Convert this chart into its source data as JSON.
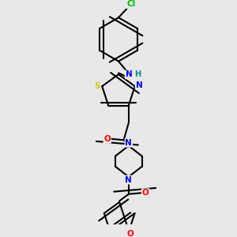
{
  "bg_color": "#e8e8e8",
  "bond_color": "#000000",
  "bond_width": 1.5,
  "atom_colors": {
    "C": "#000000",
    "N": "#0000ff",
    "O": "#ff0000",
    "S": "#cccc00",
    "Cl": "#00bb00",
    "H": "#008888"
  },
  "font_size": 7.5
}
